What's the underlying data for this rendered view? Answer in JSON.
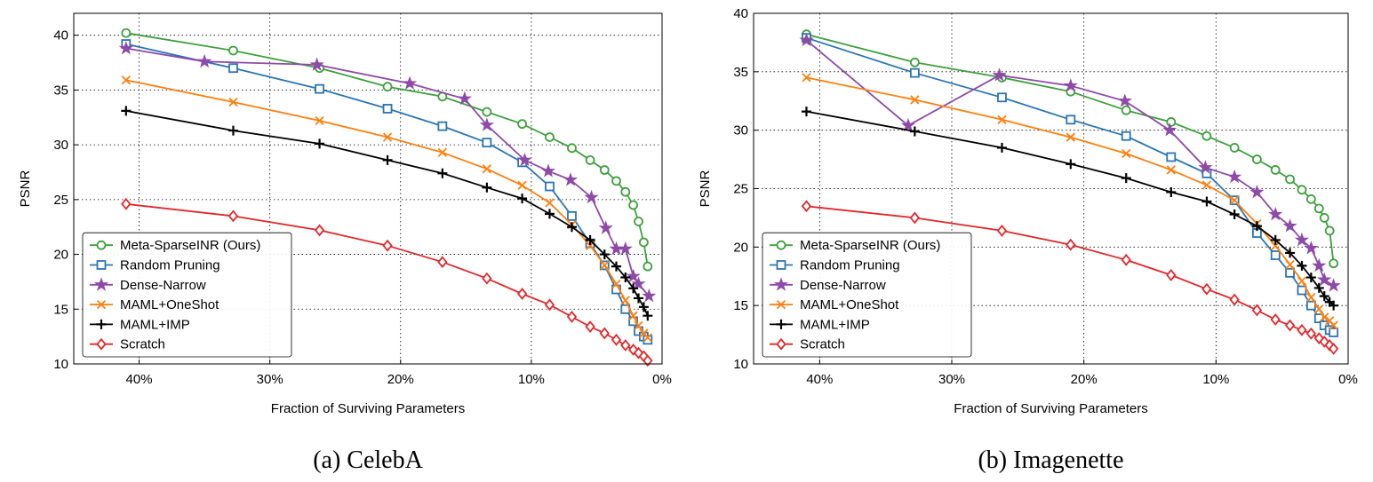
{
  "chart_data": [
    {
      "type": "line",
      "title": "(a) CelebA",
      "xlabel": "Fraction of Surviving Parameters",
      "ylabel": "PSNR",
      "xlim": [
        45,
        0
      ],
      "ylim": [
        10,
        42
      ],
      "xticks": [
        {
          "value": 40,
          "label": "40%"
        },
        {
          "value": 30,
          "label": "30%"
        },
        {
          "value": 20,
          "label": "20%"
        },
        {
          "value": 10,
          "label": "10%"
        },
        {
          "value": 0,
          "label": "0%"
        }
      ],
      "yticks": [
        10,
        15,
        20,
        25,
        30,
        35,
        40
      ],
      "grid": true,
      "legend": "lower left",
      "series": [
        {
          "name": "Meta-SparseINR (Ours)",
          "color": "#3ca03c",
          "marker": "circle",
          "x": [
            41,
            32.8,
            26.2,
            21,
            16.8,
            13.4,
            10.7,
            8.6,
            6.9,
            5.5,
            4.4,
            3.5,
            2.8,
            2.2,
            1.8,
            1.4,
            1.1
          ],
          "values": [
            40.2,
            38.6,
            37.0,
            35.3,
            34.4,
            33.0,
            31.9,
            30.7,
            29.7,
            28.6,
            27.7,
            26.7,
            25.7,
            24.5,
            23.0,
            21.1,
            18.9
          ]
        },
        {
          "name": "Random Pruning",
          "color": "#2b75b4",
          "marker": "square",
          "x": [
            41,
            32.8,
            26.2,
            21,
            16.8,
            13.4,
            10.7,
            8.6,
            6.9,
            5.5,
            4.4,
            3.5,
            2.8,
            2.2,
            1.8,
            1.4,
            1.1
          ],
          "values": [
            39.2,
            37.0,
            35.1,
            33.3,
            31.7,
            30.2,
            28.4,
            26.2,
            23.5,
            21.0,
            19.0,
            16.8,
            15.0,
            13.9,
            13.0,
            12.5,
            12.2
          ]
        },
        {
          "name": "Dense-Narrow",
          "color": "#8e4aa8",
          "marker": "star",
          "x": [
            41,
            35,
            26.4,
            19.3,
            15.1,
            13.4,
            10.5,
            8.7,
            7.0,
            5.4,
            4.3,
            3.5,
            2.8,
            2.2,
            1.8,
            1.0
          ],
          "values": [
            38.8,
            37.6,
            37.3,
            35.6,
            34.2,
            31.8,
            28.6,
            27.6,
            26.8,
            25.2,
            22.4,
            20.5,
            20.5,
            18.0,
            17.3,
            16.2
          ]
        },
        {
          "name": "MAML+OneShot",
          "color": "#ff7f0e",
          "marker": "x",
          "x": [
            41,
            32.8,
            26.2,
            21,
            16.8,
            13.4,
            10.7,
            8.6,
            6.9,
            5.5,
            4.4,
            3.5,
            2.8,
            2.2,
            1.8,
            1.4,
            1.1
          ],
          "values": [
            35.9,
            33.9,
            32.2,
            30.7,
            29.3,
            27.8,
            26.3,
            24.7,
            22.7,
            20.8,
            19.0,
            17.3,
            15.8,
            14.4,
            13.5,
            12.8,
            12.4
          ]
        },
        {
          "name": "MAML+IMP",
          "color": "#000000",
          "marker": "plus",
          "x": [
            41,
            32.8,
            26.2,
            21,
            16.8,
            13.4,
            10.7,
            8.6,
            6.9,
            5.5,
            4.4,
            3.5,
            2.8,
            2.2,
            1.8,
            1.4,
            1.1
          ],
          "values": [
            33.1,
            31.3,
            30.1,
            28.6,
            27.4,
            26.1,
            25.1,
            23.7,
            22.5,
            21.3,
            20.0,
            18.9,
            17.9,
            16.9,
            16.0,
            15.2,
            14.4
          ]
        },
        {
          "name": "Scratch",
          "color": "#e0282a",
          "marker": "diamond",
          "x": [
            41,
            32.8,
            26.2,
            21,
            16.8,
            13.4,
            10.7,
            8.6,
            6.9,
            5.5,
            4.4,
            3.5,
            2.8,
            2.2,
            1.8,
            1.4,
            1.1
          ],
          "values": [
            24.6,
            23.5,
            22.2,
            20.8,
            19.3,
            17.8,
            16.4,
            15.4,
            14.3,
            13.4,
            12.8,
            12.2,
            11.7,
            11.3,
            11.0,
            10.7,
            10.3
          ]
        }
      ]
    },
    {
      "type": "line",
      "title": "(b) Imagenette",
      "xlabel": "Fraction of Surviving Parameters",
      "ylabel": "PSNR",
      "xlim": [
        45,
        0
      ],
      "ylim": [
        10,
        40
      ],
      "xticks": [
        {
          "value": 40,
          "label": "40%"
        },
        {
          "value": 30,
          "label": "30%"
        },
        {
          "value": 20,
          "label": "20%"
        },
        {
          "value": 10,
          "label": "10%"
        },
        {
          "value": 0,
          "label": "0%"
        }
      ],
      "yticks": [
        10,
        15,
        20,
        25,
        30,
        35,
        40
      ],
      "grid": true,
      "legend": "lower left",
      "series": [
        {
          "name": "Meta-SparseINR (Ours)",
          "color": "#3ca03c",
          "marker": "circle",
          "x": [
            41,
            32.8,
            26.2,
            21,
            16.8,
            13.4,
            10.7,
            8.6,
            6.9,
            5.5,
            4.4,
            3.5,
            2.8,
            2.2,
            1.8,
            1.4,
            1.1
          ],
          "values": [
            38.2,
            35.8,
            34.5,
            33.3,
            31.7,
            30.7,
            29.5,
            28.5,
            27.5,
            26.6,
            25.8,
            24.9,
            24.1,
            23.3,
            22.5,
            21.4,
            18.6
          ]
        },
        {
          "name": "Random Pruning",
          "color": "#2b75b4",
          "marker": "square",
          "x": [
            41,
            32.8,
            26.2,
            21,
            16.8,
            13.4,
            10.7,
            8.6,
            6.9,
            5.5,
            4.4,
            3.5,
            2.8,
            2.2,
            1.8,
            1.4,
            1.1
          ],
          "values": [
            37.9,
            34.9,
            32.8,
            30.9,
            29.5,
            27.7,
            26.3,
            24.0,
            21.2,
            19.3,
            17.8,
            16.3,
            15.0,
            13.9,
            13.3,
            12.9,
            12.7
          ]
        },
        {
          "name": "Dense-Narrow",
          "color": "#8e4aa8",
          "marker": "star",
          "x": [
            41,
            33.3,
            26.4,
            21,
            16.9,
            13.5,
            10.8,
            8.6,
            6.9,
            5.5,
            4.4,
            3.5,
            2.8,
            2.2,
            1.8,
            1.1
          ],
          "values": [
            37.7,
            30.4,
            34.7,
            33.8,
            32.5,
            30.0,
            26.8,
            26.0,
            24.7,
            22.8,
            21.8,
            20.6,
            19.9,
            18.4,
            17.2,
            16.7
          ]
        },
        {
          "name": "MAML+OneShot",
          "color": "#ff7f0e",
          "marker": "x",
          "x": [
            41,
            32.8,
            26.2,
            21,
            16.8,
            13.4,
            10.7,
            8.6,
            6.9,
            5.5,
            4.4,
            3.5,
            2.8,
            2.2,
            1.8,
            1.4,
            1.1
          ],
          "values": [
            34.5,
            32.6,
            30.9,
            29.4,
            28.0,
            26.6,
            25.3,
            24.0,
            22.0,
            20.1,
            18.5,
            17.1,
            15.7,
            14.7,
            14.0,
            13.7,
            13.3
          ]
        },
        {
          "name": "MAML+IMP",
          "color": "#000000",
          "marker": "plus",
          "x": [
            41,
            32.8,
            26.2,
            21,
            16.8,
            13.4,
            10.7,
            8.6,
            6.9,
            5.5,
            4.4,
            3.5,
            2.8,
            2.2,
            1.8,
            1.4,
            1.1
          ],
          "values": [
            31.6,
            29.9,
            28.5,
            27.1,
            25.9,
            24.7,
            23.9,
            22.8,
            21.8,
            20.6,
            19.5,
            18.4,
            17.4,
            16.5,
            15.8,
            15.3,
            15.0
          ]
        },
        {
          "name": "Scratch",
          "color": "#e0282a",
          "marker": "diamond",
          "x": [
            41,
            32.8,
            26.2,
            21,
            16.8,
            13.4,
            10.7,
            8.6,
            6.9,
            5.5,
            4.4,
            3.5,
            2.8,
            2.2,
            1.8,
            1.4,
            1.1
          ],
          "values": [
            23.5,
            22.5,
            21.4,
            20.2,
            18.9,
            17.6,
            16.4,
            15.5,
            14.6,
            13.8,
            13.3,
            12.9,
            12.6,
            12.2,
            11.9,
            11.6,
            11.3
          ]
        }
      ]
    }
  ]
}
